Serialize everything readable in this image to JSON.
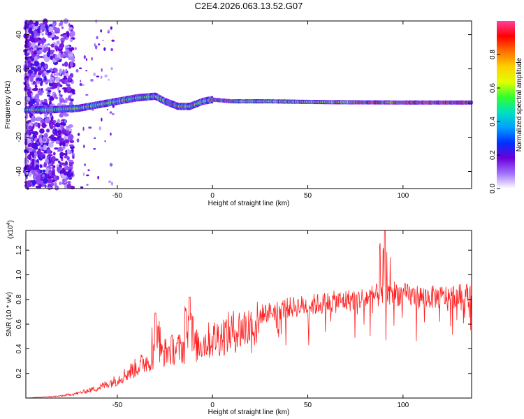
{
  "title": "C2E4.2026.063.13.52.G07",
  "chart_data": [
    {
      "type": "heatmap",
      "name": "spectrogram",
      "xlabel": "Height of straight line (km)",
      "ylabel": "Frequency (Hz)",
      "xlim": [
        -98,
        136
      ],
      "ylim": [
        -50,
        48
      ],
      "xticks": [
        -50,
        0,
        50,
        100
      ],
      "yticks": [
        -40,
        -20,
        0,
        20,
        40
      ],
      "colorbar": {
        "label": "Normalized spectral amplitude",
        "range": [
          0,
          1
        ],
        "ticks": [
          "0.0",
          "0.2",
          "0.4",
          "0.6",
          "0.8"
        ],
        "tick_values": [
          0.0,
          0.2,
          0.4,
          0.6,
          0.8
        ],
        "colormap": [
          "#ffffff",
          "#a070ff",
          "#6a00d8",
          "#0030ff",
          "#00a0ff",
          "#00e0c0",
          "#30ff30",
          "#e0ff00",
          "#ffd000",
          "#ff7000",
          "#ff0000",
          "#ff40a0"
        ]
      },
      "ridge_knots": [
        [
          -85,
          -4
        ],
        [
          -70,
          -3
        ],
        [
          -60,
          -1
        ],
        [
          -50,
          1
        ],
        [
          -40,
          3
        ],
        [
          -30,
          4
        ],
        [
          -25,
          1
        ],
        [
          -18,
          -2
        ],
        [
          -12,
          -2
        ],
        [
          -5,
          1
        ],
        [
          0,
          2
        ],
        [
          10,
          1
        ],
        [
          30,
          1
        ],
        [
          60,
          0.5
        ],
        [
          100,
          0.3
        ],
        [
          136,
          0.3
        ]
      ]
    },
    {
      "type": "line",
      "name": "snr",
      "xlabel": "Height of straight line (km)",
      "ylabel": "SNR (10 * v/v)",
      "exponent_label": "(x10",
      "exponent_value": "4",
      "exponent_close": ")",
      "xlim": [
        -98,
        136
      ],
      "ylim": [
        0,
        1.36
      ],
      "xticks": [
        -50,
        0,
        50,
        100
      ],
      "yticks": [
        0.2,
        0.4,
        0.6,
        0.8,
        1.0,
        1.2
      ],
      "ytick_labels": [
        "0.2",
        "0.4",
        "0.6",
        "0.8",
        "1.0",
        "1.2"
      ],
      "color": "#ff2020",
      "envelope_knots": [
        [
          -98,
          0.0
        ],
        [
          -80,
          0.02
        ],
        [
          -70,
          0.05
        ],
        [
          -60,
          0.1
        ],
        [
          -50,
          0.18
        ],
        [
          -40,
          0.3
        ],
        [
          -30,
          0.42
        ],
        [
          -20,
          0.48
        ],
        [
          -10,
          0.5
        ],
        [
          0,
          0.58
        ],
        [
          10,
          0.65
        ],
        [
          20,
          0.71
        ],
        [
          30,
          0.75
        ],
        [
          40,
          0.79
        ],
        [
          50,
          0.81
        ],
        [
          60,
          0.83
        ],
        [
          70,
          0.85
        ],
        [
          80,
          0.87
        ],
        [
          88,
          0.9
        ],
        [
          95,
          0.92
        ],
        [
          100,
          0.9
        ],
        [
          110,
          0.88
        ],
        [
          120,
          0.88
        ],
        [
          136,
          0.9
        ]
      ],
      "peaks": [
        {
          "x": -12,
          "y": 0.82
        },
        {
          "x": 90.5,
          "y": 1.36
        },
        {
          "x": -30,
          "y": 0.69
        }
      ]
    }
  ]
}
